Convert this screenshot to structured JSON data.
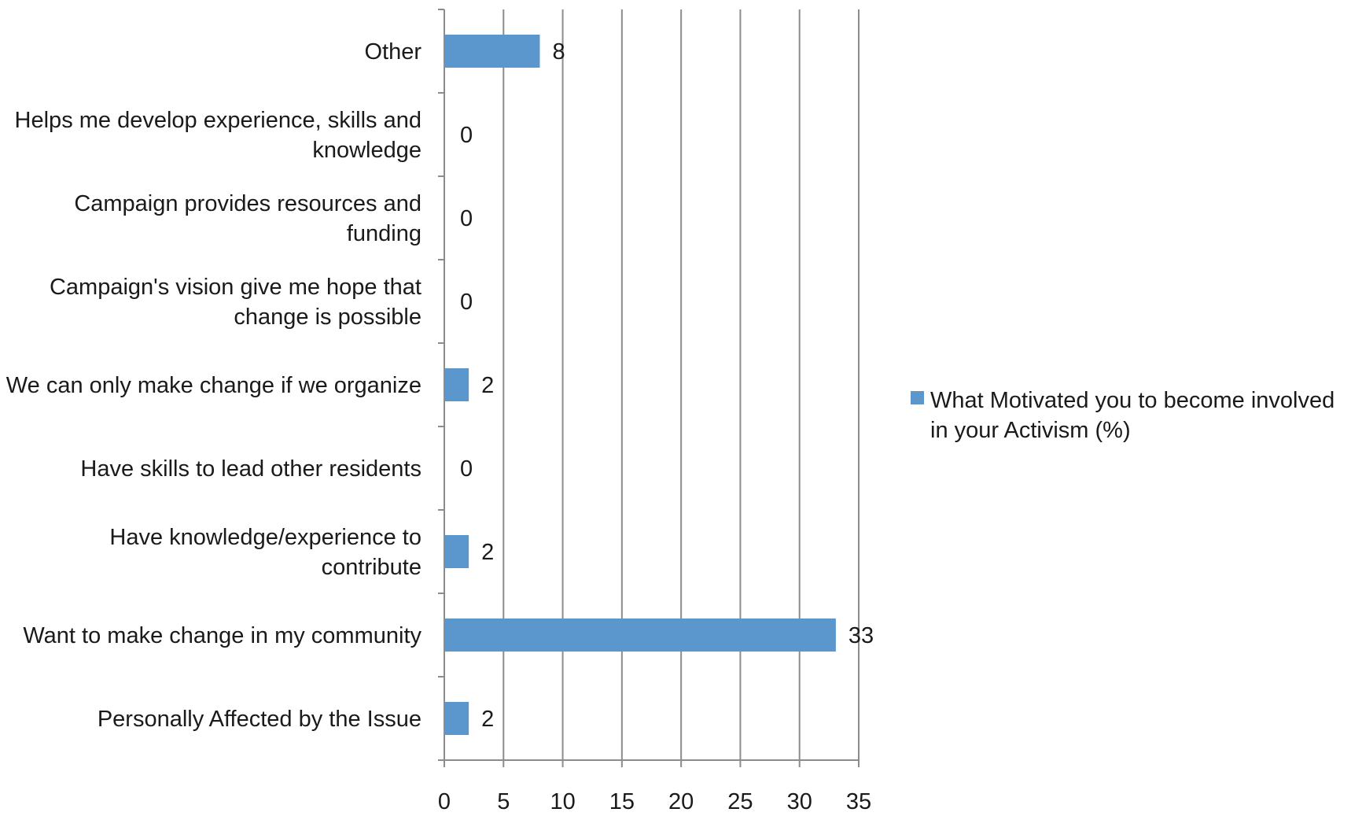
{
  "chart_data": {
    "type": "bar",
    "orientation": "horizontal",
    "categories": [
      "Personally Affected by the Issue",
      "Want to make change in my community",
      "Have knowledge/experience to contribute",
      "Have skills to lead other residents",
      "We can only make change if we organize",
      "Campaign's vision give me hope that change is possible",
      "Campaign provides resources and funding",
      "Helps me develop experience, skills and knowledge",
      "Other"
    ],
    "category_lines": [
      [
        "Personally Affected by the Issue"
      ],
      [
        "Want to make change in my community"
      ],
      [
        "Have knowledge/experience to",
        "contribute"
      ],
      [
        "Have skills to lead other residents"
      ],
      [
        "We can only make change if we organize"
      ],
      [
        "Campaign's vision give me hope that",
        "change is possible"
      ],
      [
        "Campaign provides resources and",
        "funding"
      ],
      [
        "Helps me develop experience, skills and",
        "knowledge"
      ],
      [
        "Other"
      ]
    ],
    "series": [
      {
        "name": "What Motivated you to become involved in your Activism (%)",
        "name_lines": [
          "What Motivated you to become involved",
          "in your Activism (%)"
        ],
        "values": [
          2,
          33,
          2,
          0,
          2,
          0,
          0,
          0,
          8
        ],
        "color": "#5b96cd"
      }
    ],
    "xlim": [
      0,
      35
    ],
    "xticks": [
      0,
      5,
      10,
      15,
      20,
      25,
      30,
      35
    ],
    "xlabel": "",
    "ylabel": "",
    "title": "",
    "grid": "vertical",
    "legend_position": "right",
    "colors": {
      "bar": "#5b96cd",
      "grid": "#8c8c8c",
      "axis": "#8c8c8c"
    }
  }
}
